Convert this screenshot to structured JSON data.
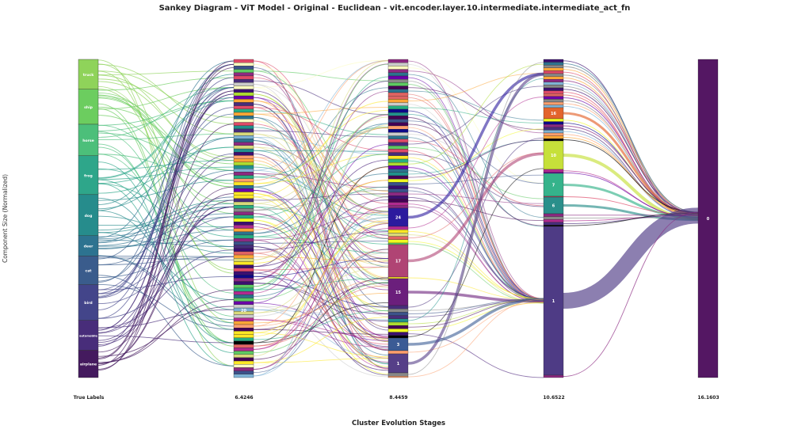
{
  "chart_data": {
    "type": "sankey",
    "title": "Sankey Diagram - ViT Model - Original - Euclidean - vit.encoder.layer.10.intermediate.intermediate_act_fn",
    "xlabel": "Cluster Evolution Stages",
    "ylabel": "Component Size (Normalized)",
    "stage_labels": [
      "True Labels",
      "6.4246",
      "8.4459",
      "10.6522",
      "16.1603"
    ],
    "true_labels": [
      {
        "name": "truck",
        "share": 0.094,
        "color": "#8fd35a"
      },
      {
        "name": "ship",
        "share": 0.11,
        "color": "#6ccd5f"
      },
      {
        "name": "horse",
        "share": 0.099,
        "color": "#4cbf7a"
      },
      {
        "name": "frog",
        "share": 0.122,
        "color": "#2ea68a"
      },
      {
        "name": "dog",
        "share": 0.129,
        "color": "#268c8c"
      },
      {
        "name": "deer",
        "share": 0.064,
        "color": "#2d7390"
      },
      {
        "name": "cat",
        "share": 0.09,
        "color": "#3a5c8c"
      },
      {
        "name": "bird",
        "share": 0.112,
        "color": "#43458a"
      },
      {
        "name": "automobile",
        "share": 0.094,
        "color": "#482d7a"
      },
      {
        "name": "airplane",
        "share": 0.086,
        "color": "#441a5e"
      }
    ],
    "stage2_labeled_clusters": [
      "20"
    ],
    "stage3_labeled_clusters": [
      "24",
      "17",
      "15",
      "3",
      "1"
    ],
    "stage4_labeled_clusters": [
      "16",
      "10",
      "7",
      "6",
      "1"
    ],
    "stage5_labeled_clusters": [
      "0"
    ],
    "stage4_colors": {
      "16": "#e3642c",
      "10": "#c6e03a",
      "7": "#35b38b",
      "6": "#2a8f8b",
      "1": "#4e3b85"
    },
    "stage3_colors": {
      "24": "#2c1a9e",
      "17": "#b04474",
      "15": "#6b1f7c",
      "3": "#3b5b95",
      "1": "#563f88"
    },
    "stage5_color": "#541763"
  }
}
